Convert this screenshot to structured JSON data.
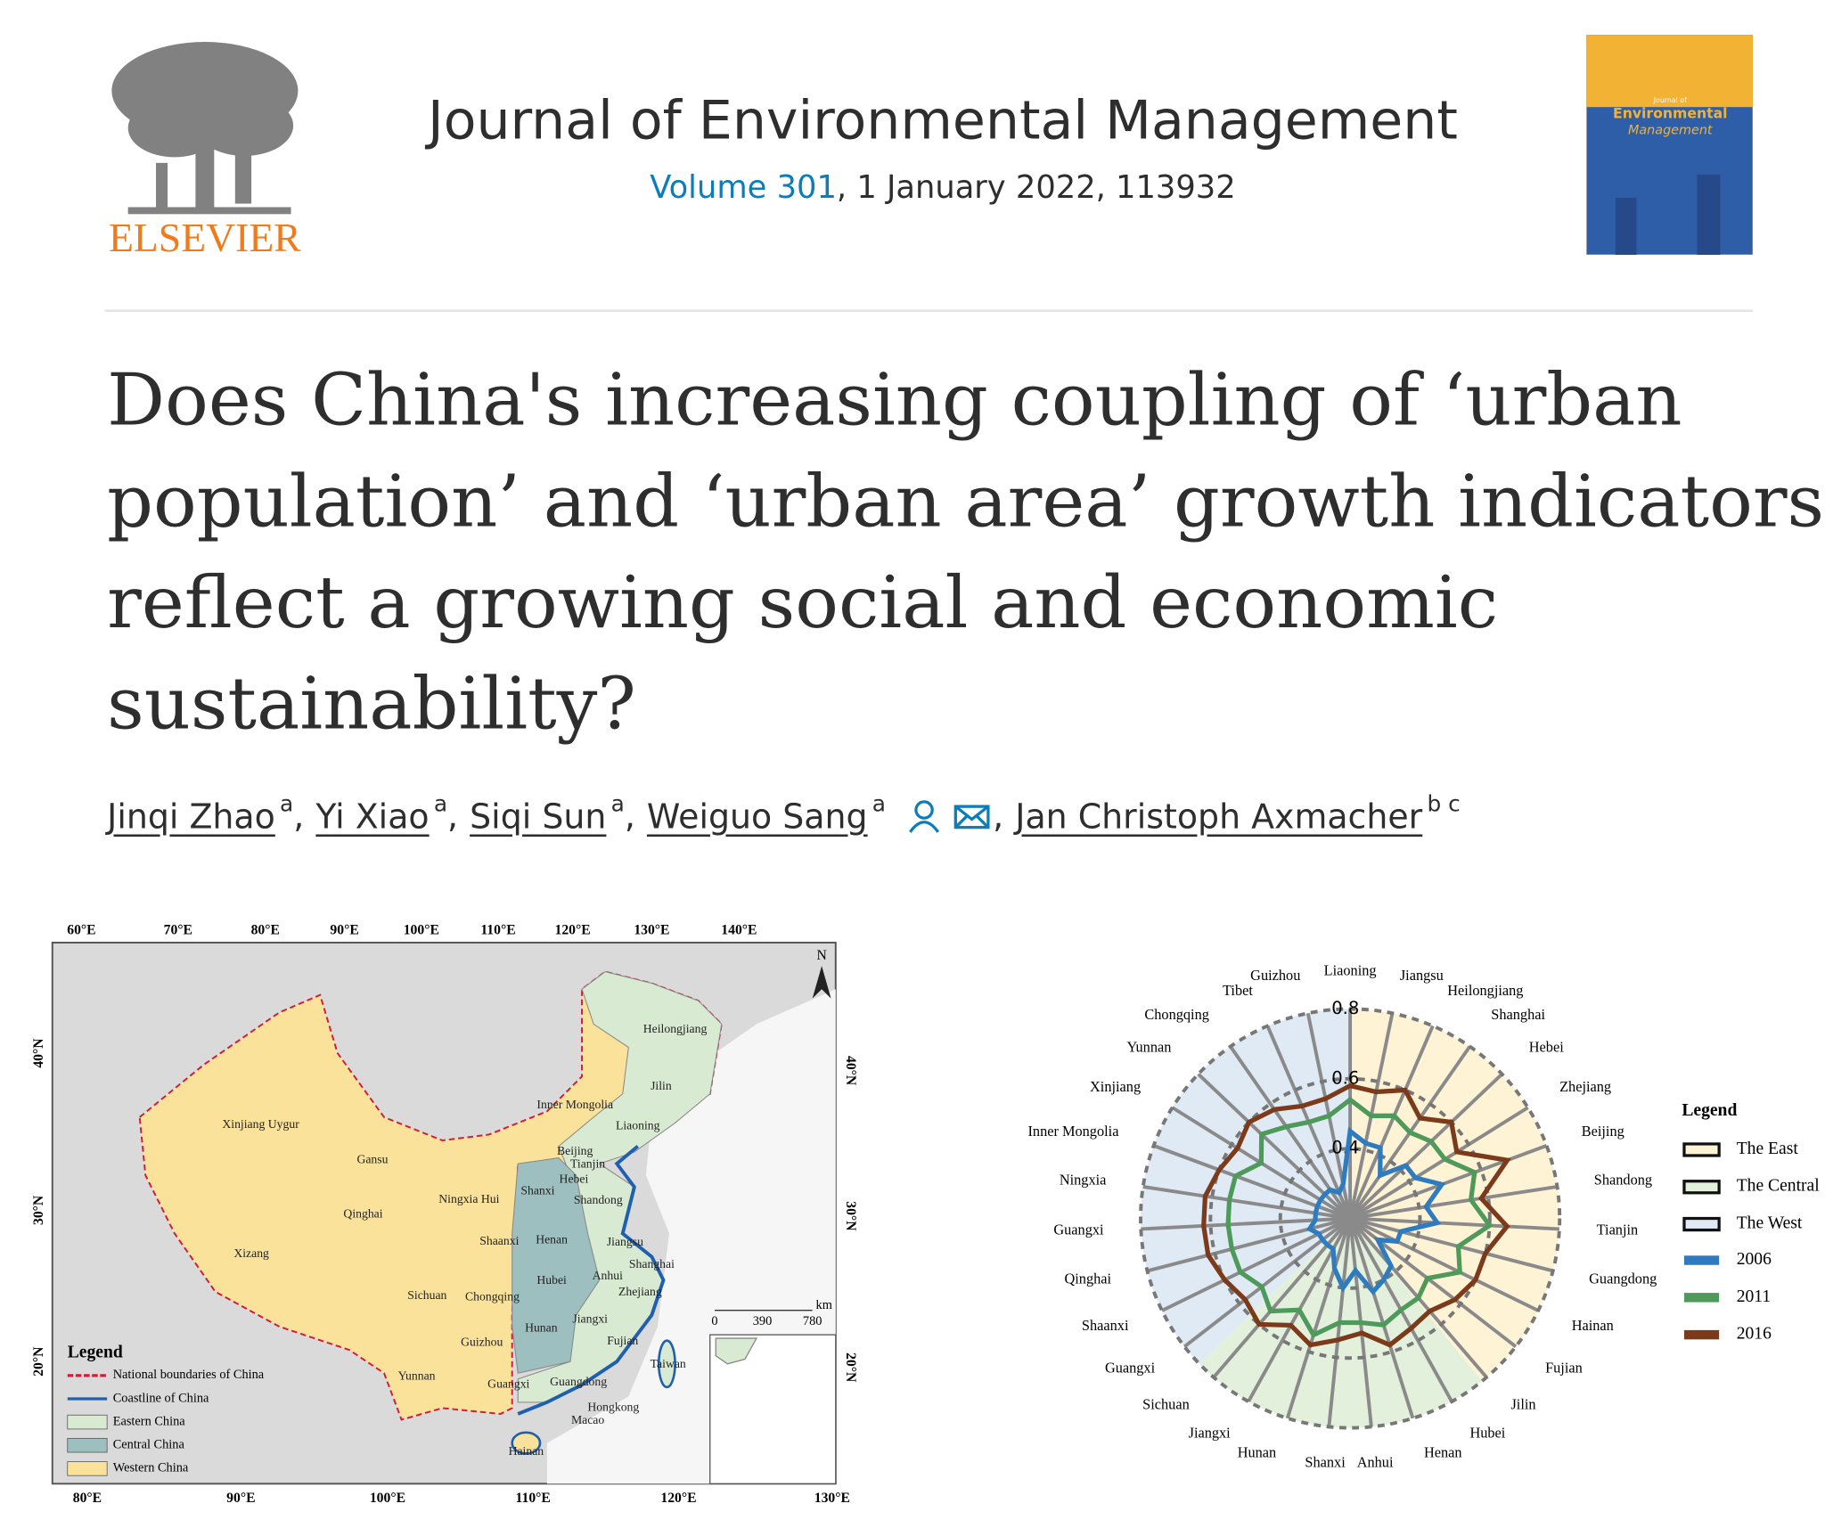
{
  "header": {
    "publisher": "ELSEVIER",
    "journal": "Journal of Environmental Management",
    "volume": "Volume 301",
    "issue_info": ", 1 January 2022, 113932",
    "cover": {
      "small": "Journal of",
      "title_lines": [
        "Environmental",
        "Management"
      ]
    }
  },
  "article": {
    "title_lines": [
      "Does China's increasing coupling of ‘urban",
      "population’ and ‘urban area’ growth indicators",
      "reflect a growing social and economic",
      "sustainability?"
    ],
    "authors": [
      {
        "name": "Jinqi Zhao",
        "affiliation": "a"
      },
      {
        "name": "Yi Xiao",
        "affiliation": "a"
      },
      {
        "name": "Siqi Sun",
        "affiliation": "a"
      },
      {
        "name": "Weiguo Sang",
        "affiliation": "a"
      },
      {
        "name": "Jan Christoph Axmacher",
        "affiliation": "b c"
      }
    ],
    "separator": ","
  },
  "map": {
    "top_labels": [
      "60°E",
      "70°E",
      "80°E",
      "90°E",
      "100°E",
      "110°E",
      "120°E",
      "130°E",
      "140°E"
    ],
    "bottom_labels": [
      "80°E",
      "90°E",
      "100°E",
      "110°E",
      "120°E",
      "130°E"
    ],
    "left_labels": [
      "40°N",
      "30°N",
      "20°N"
    ],
    "right_labels": [
      "40°N",
      "30°N",
      "20°N"
    ],
    "north": "N",
    "provinces": [
      "Heilongjiang",
      "Jilin",
      "Liaoning",
      "Inner Mongolia",
      "Xinjiang Uygur",
      "Gansu",
      "Beijing",
      "Tianjin",
      "Hebei",
      "Shanxi",
      "Shandong",
      "Ningxia Hui",
      "Qinghai",
      "Shaanxi",
      "Henan",
      "Jiangsu",
      "Xizang",
      "Shanghai",
      "Anhui",
      "Hubei",
      "Zhejiang",
      "Sichuan",
      "Chongqing",
      "Jiangxi",
      "Hunan",
      "Guizhou",
      "Fujian",
      "Taiwan",
      "Yunnan",
      "Guangxi",
      "Guangdong",
      "Hongkong",
      "Macao",
      "Hainan"
    ],
    "scale_labels": [
      "0",
      "390",
      "780",
      "km"
    ],
    "legend": {
      "title": "Legend",
      "items": [
        "National boundaries of China",
        "Coastline of China",
        "Eastern China",
        "Central China",
        "Western China"
      ]
    }
  },
  "chart_data": {
    "type": "radar",
    "categories": [
      "Liaoning",
      "Jiangsu",
      "Heilongjiang",
      "Shanghai",
      "Hebei",
      "Zhejiang",
      "Beijing",
      "Shandong",
      "Tianjin",
      "Guangdong",
      "Hainan",
      "Fujian",
      "Jilin",
      "Hubei",
      "Henan",
      "Anhui",
      "Shanxi",
      "Hunan",
      "Jiangxi",
      "Sichuan",
      "Guangxi",
      "Shaanxi",
      "Qinghai",
      "Guangxi",
      "Ningxia",
      "Inner Mongolia",
      "Xinjiang",
      "Yunnan",
      "Chongqing",
      "Tibet",
      "Guizhou"
    ],
    "ylim": [
      0.2,
      0.8
    ],
    "yticks": [
      0.4,
      0.6,
      0.8
    ],
    "legend_title": "Legend",
    "regions": [
      {
        "name": "The East",
        "color": "#fff3d6"
      },
      {
        "name": "The Central",
        "color": "#e3f0dc"
      },
      {
        "name": "The West",
        "color": "#dfeaf5"
      }
    ],
    "series": [
      {
        "name": "2006",
        "color": "#2e7bbf",
        "values": [
          0.45,
          0.42,
          0.42,
          0.35,
          0.42,
          0.42,
          0.48,
          0.42,
          0.45,
          0.35,
          0.35,
          0.3,
          0.38,
          0.4,
          0.42,
          0.35,
          0.4,
          0.35,
          0.3,
          0.3,
          0.3,
          0.3,
          0.32,
          0.3,
          0.3,
          0.3,
          0.3,
          0.3,
          0.3,
          0.28,
          0.3
        ]
      },
      {
        "name": "2011",
        "color": "#4e9a5a",
        "values": [
          0.54,
          0.5,
          0.52,
          0.5,
          0.52,
          0.52,
          0.58,
          0.55,
          0.6,
          0.52,
          0.55,
          0.48,
          0.5,
          0.5,
          0.52,
          0.5,
          0.5,
          0.55,
          0.5,
          0.55,
          0.52,
          0.55,
          0.55,
          0.55,
          0.55,
          0.55,
          0.5,
          0.55,
          0.52,
          0.5,
          0.5
        ]
      },
      {
        "name": "2016",
        "color": "#7b3a1a",
        "values": [
          0.58,
          0.57,
          0.6,
          0.55,
          0.6,
          0.56,
          0.68,
          0.58,
          0.65,
          0.6,
          0.6,
          0.58,
          0.55,
          0.56,
          0.58,
          0.53,
          0.55,
          0.58,
          0.55,
          0.6,
          0.58,
          0.6,
          0.62,
          0.62,
          0.62,
          0.6,
          0.58,
          0.6,
          0.58,
          0.55,
          0.55
        ]
      }
    ]
  }
}
